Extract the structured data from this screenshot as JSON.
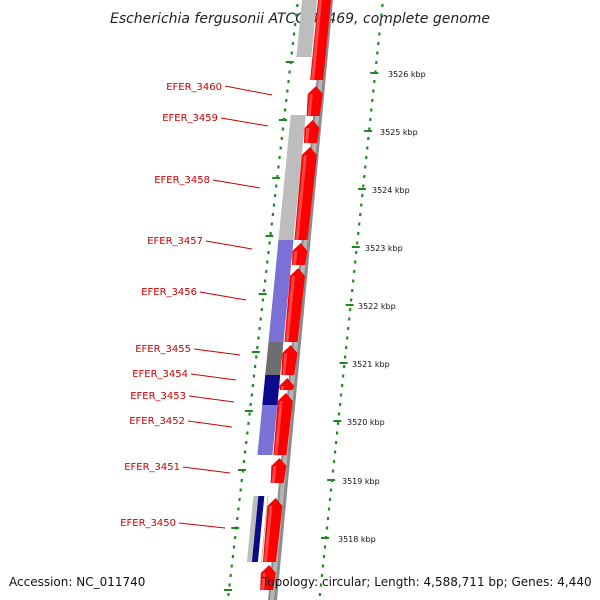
{
  "title": "Escherichia fergusonii ATCC 35469, complete genome",
  "footer": {
    "accession": "Accession: NC_011740",
    "topology": "Topology: circular; Length: 4,588,711 bp; Genes: 4,440"
  },
  "genes": [
    {
      "name": "EFER_3460"
    },
    {
      "name": "EFER_3459"
    },
    {
      "name": "EFER_3458"
    },
    {
      "name": "EFER_3457"
    },
    {
      "name": "EFER_3456"
    },
    {
      "name": "EFER_3455"
    },
    {
      "name": "EFER_3454"
    },
    {
      "name": "EFER_3453"
    },
    {
      "name": "EFER_3452"
    },
    {
      "name": "EFER_3451"
    },
    {
      "name": "EFER_3450"
    }
  ],
  "kbp_ticks": [
    "3526 kbp",
    "3525 kbp",
    "3524 kbp",
    "3523 kbp",
    "3522 kbp",
    "3521 kbp",
    "3520 kbp",
    "3519 kbp",
    "3518 kbp"
  ],
  "colors": {
    "forward_cds": "#ff0000",
    "backbone": "#8c8c8c",
    "tick_green": "#1f8a1f",
    "label_red": "#cc0000",
    "gray_light": "#bdbdbd",
    "gray_dark": "#6e6e6e",
    "purple": "#7a70d6",
    "navy": "#0a0a8c"
  }
}
